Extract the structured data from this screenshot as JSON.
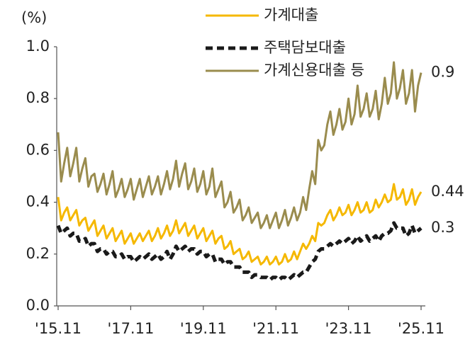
{
  "chart_data": {
    "type": "line",
    "y_label": "(%)",
    "categories": [
      "'15.11",
      null,
      null,
      null,
      null,
      null,
      null,
      null,
      null,
      null,
      null,
      null,
      null,
      null,
      null,
      null,
      null,
      null,
      null,
      null,
      null,
      null,
      null,
      null,
      "'17.11",
      null,
      null,
      null,
      null,
      null,
      null,
      null,
      null,
      null,
      null,
      null,
      null,
      null,
      null,
      null,
      null,
      null,
      null,
      null,
      null,
      null,
      null,
      null,
      "'19.11",
      null,
      null,
      null,
      null,
      null,
      null,
      null,
      null,
      null,
      null,
      null,
      null,
      null,
      null,
      null,
      null,
      null,
      null,
      null,
      null,
      null,
      null,
      null,
      "'21.11",
      null,
      null,
      null,
      null,
      null,
      null,
      null,
      null,
      null,
      null,
      null,
      null,
      null,
      null,
      null,
      null,
      null,
      null,
      null,
      null,
      null,
      null,
      null,
      "'23.11",
      null,
      null,
      null,
      null,
      null,
      null,
      null,
      null,
      null,
      null,
      null,
      null,
      null,
      null,
      null,
      null,
      null,
      null,
      null,
      null,
      null,
      null,
      null,
      "'25.11"
    ],
    "ylim": [
      0,
      1
    ],
    "yticks": [
      {
        "value": 0,
        "label": "0.0"
      },
      0.2,
      0.4,
      0.6,
      0.8,
      {
        "value": 1,
        "label": "1.0"
      }
    ],
    "grid": false,
    "series": [
      {
        "name": "가계대출",
        "color": "#f5b800",
        "dashed": false,
        "values": [
          0.42,
          0.33,
          0.36,
          0.38,
          0.33,
          0.35,
          0.37,
          0.31,
          0.33,
          0.34,
          0.29,
          0.31,
          0.33,
          0.27,
          0.29,
          0.31,
          0.26,
          0.28,
          0.3,
          0.25,
          0.27,
          0.29,
          0.24,
          0.26,
          0.28,
          0.24,
          0.26,
          0.28,
          0.25,
          0.27,
          0.29,
          0.25,
          0.27,
          0.3,
          0.26,
          0.28,
          0.31,
          0.27,
          0.29,
          0.33,
          0.28,
          0.3,
          0.32,
          0.27,
          0.29,
          0.31,
          0.26,
          0.28,
          0.3,
          0.25,
          0.27,
          0.29,
          0.24,
          0.26,
          0.27,
          0.22,
          0.23,
          0.25,
          0.2,
          0.21,
          0.22,
          0.18,
          0.19,
          0.21,
          0.17,
          0.18,
          0.19,
          0.16,
          0.17,
          0.19,
          0.16,
          0.17,
          0.19,
          0.16,
          0.17,
          0.2,
          0.17,
          0.18,
          0.21,
          0.18,
          0.21,
          0.24,
          0.22,
          0.24,
          0.27,
          0.25,
          0.32,
          0.31,
          0.32,
          0.35,
          0.37,
          0.33,
          0.35,
          0.38,
          0.35,
          0.36,
          0.39,
          0.35,
          0.37,
          0.4,
          0.36,
          0.37,
          0.4,
          0.36,
          0.37,
          0.41,
          0.38,
          0.4,
          0.43,
          0.4,
          0.41,
          0.47,
          0.41,
          0.42,
          0.45,
          0.39,
          0.41,
          0.45,
          0.39,
          0.42,
          0.44
        ]
      },
      {
        "name": "주택담보대출",
        "color": "#1a1a1a",
        "dashed": true,
        "values": [
          0.31,
          0.28,
          0.29,
          0.3,
          0.27,
          0.28,
          0.28,
          0.25,
          0.25,
          0.26,
          0.23,
          0.24,
          0.24,
          0.21,
          0.22,
          0.22,
          0.2,
          0.21,
          0.21,
          0.19,
          0.19,
          0.2,
          0.18,
          0.19,
          0.19,
          0.17,
          0.18,
          0.19,
          0.18,
          0.19,
          0.2,
          0.18,
          0.19,
          0.2,
          0.18,
          0.19,
          0.21,
          0.18,
          0.2,
          0.23,
          0.21,
          0.22,
          0.23,
          0.21,
          0.22,
          0.22,
          0.2,
          0.21,
          0.21,
          0.19,
          0.2,
          0.2,
          0.17,
          0.18,
          0.18,
          0.16,
          0.17,
          0.17,
          0.15,
          0.15,
          0.15,
          0.13,
          0.13,
          0.13,
          0.11,
          0.12,
          0.12,
          0.11,
          0.11,
          0.11,
          0.1,
          0.11,
          0.11,
          0.1,
          0.11,
          0.11,
          0.1,
          0.11,
          0.12,
          0.11,
          0.12,
          0.13,
          0.13,
          0.15,
          0.17,
          0.18,
          0.21,
          0.22,
          0.22,
          0.23,
          0.24,
          0.23,
          0.24,
          0.25,
          0.24,
          0.25,
          0.26,
          0.24,
          0.25,
          0.27,
          0.25,
          0.26,
          0.27,
          0.25,
          0.26,
          0.27,
          0.25,
          0.27,
          0.28,
          0.28,
          0.29,
          0.32,
          0.3,
          0.3,
          0.3,
          0.27,
          0.28,
          0.31,
          0.28,
          0.29,
          0.3
        ]
      },
      {
        "name": "가계신용대출 등",
        "color": "#9a8c4e",
        "dashed": false,
        "values": [
          0.67,
          0.48,
          0.55,
          0.61,
          0.5,
          0.55,
          0.61,
          0.48,
          0.53,
          0.57,
          0.46,
          0.5,
          0.51,
          0.44,
          0.47,
          0.51,
          0.43,
          0.47,
          0.52,
          0.42,
          0.45,
          0.49,
          0.42,
          0.45,
          0.49,
          0.41,
          0.45,
          0.49,
          0.42,
          0.46,
          0.5,
          0.43,
          0.46,
          0.5,
          0.43,
          0.47,
          0.52,
          0.45,
          0.49,
          0.56,
          0.46,
          0.51,
          0.55,
          0.45,
          0.48,
          0.53,
          0.44,
          0.47,
          0.52,
          0.43,
          0.46,
          0.53,
          0.42,
          0.45,
          0.48,
          0.38,
          0.4,
          0.44,
          0.36,
          0.38,
          0.41,
          0.33,
          0.35,
          0.38,
          0.32,
          0.34,
          0.36,
          0.3,
          0.32,
          0.35,
          0.3,
          0.33,
          0.36,
          0.3,
          0.33,
          0.37,
          0.31,
          0.34,
          0.38,
          0.33,
          0.36,
          0.42,
          0.37,
          0.45,
          0.52,
          0.47,
          0.64,
          0.6,
          0.62,
          0.7,
          0.75,
          0.66,
          0.7,
          0.76,
          0.68,
          0.71,
          0.8,
          0.7,
          0.74,
          0.85,
          0.73,
          0.76,
          0.82,
          0.73,
          0.76,
          0.83,
          0.72,
          0.78,
          0.88,
          0.78,
          0.82,
          0.94,
          0.8,
          0.84,
          0.91,
          0.78,
          0.82,
          0.91,
          0.75,
          0.85,
          0.9
        ]
      }
    ]
  }
}
